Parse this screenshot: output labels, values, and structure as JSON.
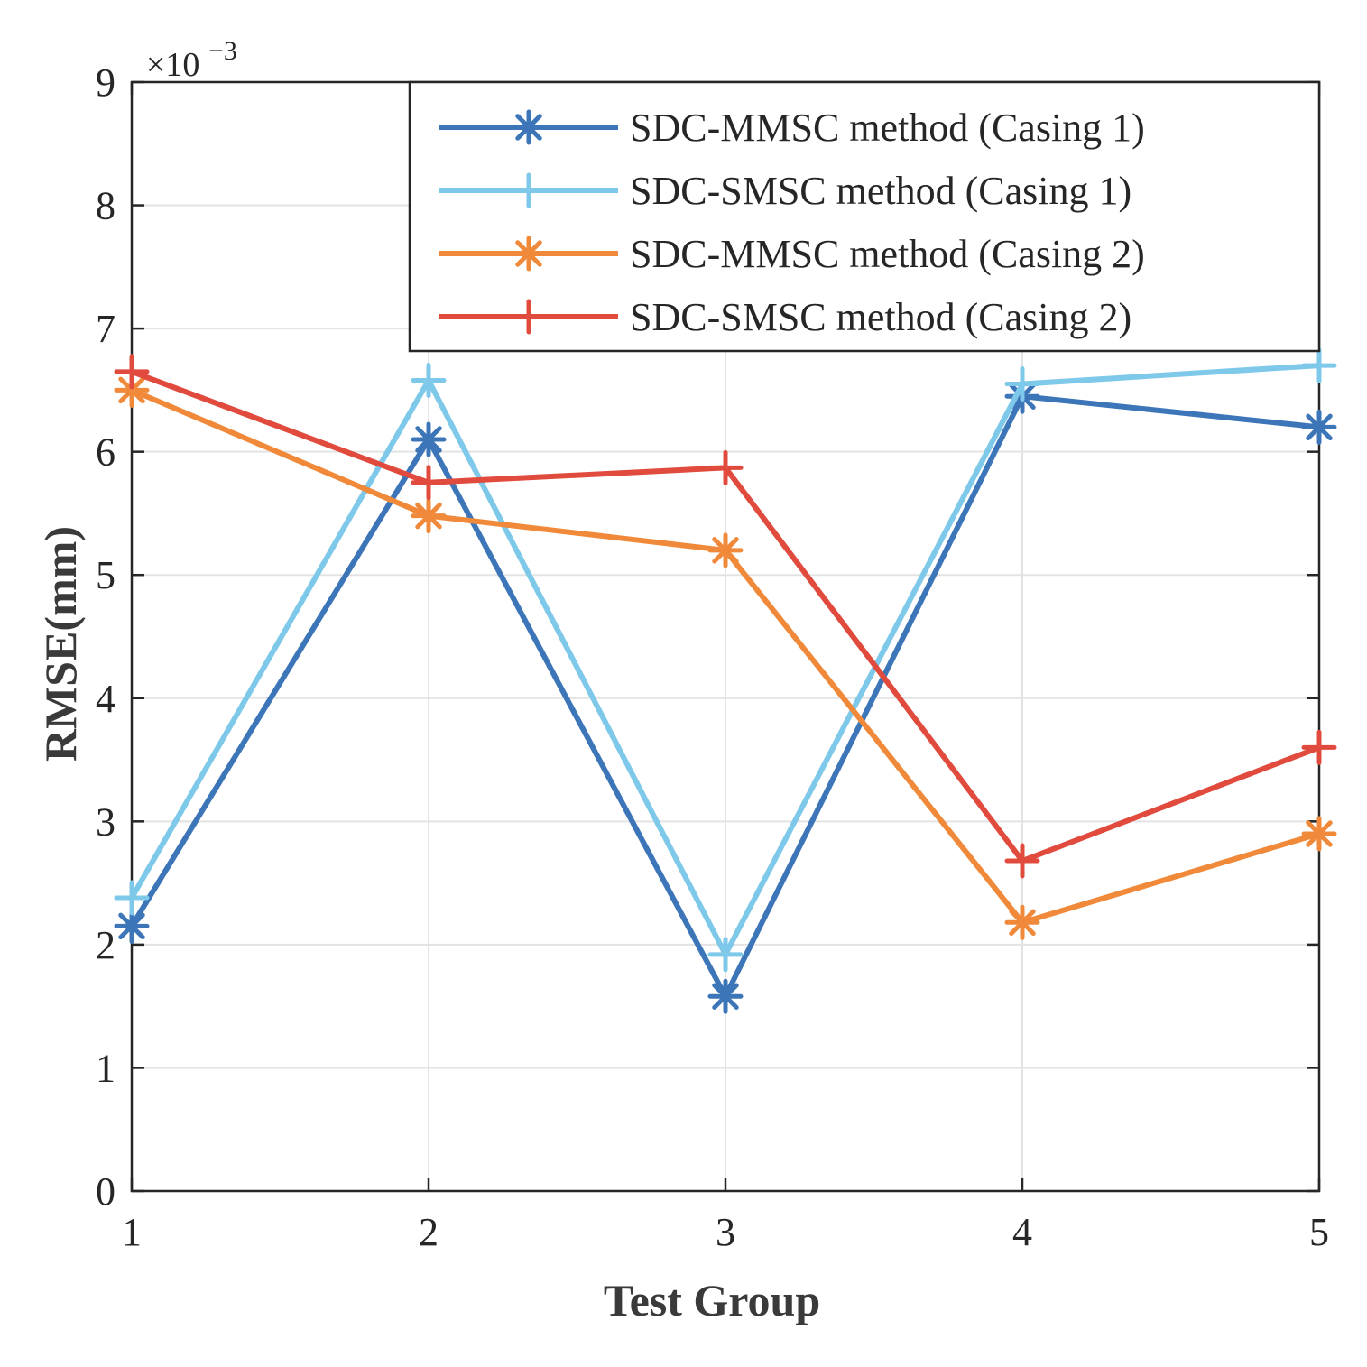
{
  "chart_data": {
    "type": "line",
    "xlabel": "Test Group",
    "ylabel": "RMSE(mm)",
    "x": [
      1,
      2,
      3,
      4,
      5
    ],
    "xlim": [
      1,
      5
    ],
    "ylim": [
      0,
      9
    ],
    "xticks": [
      "1",
      "2",
      "3",
      "4",
      "5"
    ],
    "yticks": [
      "0",
      "1",
      "2",
      "3",
      "4",
      "5",
      "6",
      "7",
      "8",
      "9"
    ],
    "y_exponent_base": "×10",
    "y_exponent_power": "−3",
    "grid": true,
    "legend_position": "top-right",
    "series": [
      {
        "name": "SDC-MMSC method (Casing 1)",
        "color": "#3d76b8",
        "marker": "asterisk",
        "values": [
          2.15,
          6.1,
          1.58,
          6.45,
          6.2
        ]
      },
      {
        "name": "SDC-SMSC method (Casing 1)",
        "color": "#7ec8ea",
        "marker": "plus",
        "values": [
          2.38,
          6.58,
          1.92,
          6.55,
          6.7
        ]
      },
      {
        "name": "SDC-MMSC method (Casing 2)",
        "color": "#f08a3a",
        "marker": "asterisk",
        "values": [
          6.5,
          5.48,
          5.2,
          2.18,
          2.9
        ]
      },
      {
        "name": "SDC-SMSC method (Casing 2)",
        "color": "#e04b3e",
        "marker": "plus",
        "values": [
          6.65,
          5.75,
          5.87,
          2.68,
          3.6
        ]
      }
    ]
  }
}
